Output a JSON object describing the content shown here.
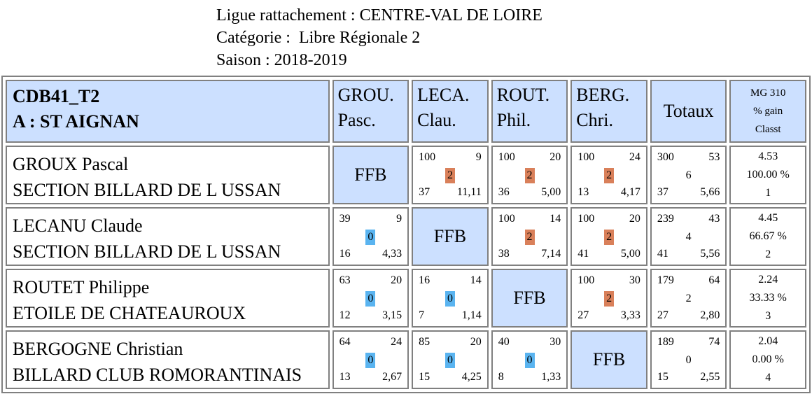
{
  "header": {
    "ligue": "Ligue rattachement : CENTRE-VAL DE LOIRE",
    "categorie": "Catégorie :  Libre Régionale 2",
    "saison": "Saison : 2018-2019"
  },
  "table_head": {
    "team_code": "CDB41_T2",
    "team_name": "A : ST AIGNAN",
    "cols": [
      {
        "l1": "GROU.",
        "l2": "Pasc."
      },
      {
        "l1": "LECA.",
        "l2": "Clau."
      },
      {
        "l1": "ROUT.",
        "l2": "Phil."
      },
      {
        "l1": "BERG.",
        "l2": "Chri."
      }
    ],
    "totaux": "Totaux",
    "mg": {
      "l1": "MG 310",
      "l2": "% gain",
      "l3": "Classt"
    }
  },
  "ffb_label": "FFB",
  "rows": [
    {
      "name": "GROUX Pascal",
      "club": "SECTION BILLARD DE L USSAN",
      "cells": [
        null,
        {
          "tl": "100",
          "tr": "9",
          "mid": "2",
          "bl": "37",
          "br": "11,11",
          "result": "win"
        },
        {
          "tl": "100",
          "tr": "20",
          "mid": "2",
          "bl": "36",
          "br": "5,00",
          "result": "win"
        },
        {
          "tl": "100",
          "tr": "24",
          "mid": "2",
          "bl": "13",
          "br": "4,17",
          "result": "win"
        }
      ],
      "totals": {
        "tl": "300",
        "tr": "53",
        "mid": "6",
        "bl": "37",
        "br": "5,66"
      },
      "mg": {
        "avg": "4.53",
        "pct": "100.00 %",
        "rank": "1"
      }
    },
    {
      "name": "LECANU Claude",
      "club": "SECTION BILLARD DE L USSAN",
      "cells": [
        {
          "tl": "39",
          "tr": "9",
          "mid": "0",
          "bl": "16",
          "br": "4,33",
          "result": "loss"
        },
        null,
        {
          "tl": "100",
          "tr": "14",
          "mid": "2",
          "bl": "38",
          "br": "7,14",
          "result": "win"
        },
        {
          "tl": "100",
          "tr": "20",
          "mid": "2",
          "bl": "41",
          "br": "5,00",
          "result": "win"
        }
      ],
      "totals": {
        "tl": "239",
        "tr": "43",
        "mid": "4",
        "bl": "41",
        "br": "5,56"
      },
      "mg": {
        "avg": "4.45",
        "pct": "66.67 %",
        "rank": "2"
      }
    },
    {
      "name": "ROUTET Philippe",
      "club": "ETOILE DE CHATEAUROUX",
      "cells": [
        {
          "tl": "63",
          "tr": "20",
          "mid": "0",
          "bl": "12",
          "br": "3,15",
          "result": "loss"
        },
        {
          "tl": "16",
          "tr": "14",
          "mid": "0",
          "bl": "7",
          "br": "1,14",
          "result": "loss"
        },
        null,
        {
          "tl": "100",
          "tr": "30",
          "mid": "2",
          "bl": "27",
          "br": "3,33",
          "result": "win"
        }
      ],
      "totals": {
        "tl": "179",
        "tr": "64",
        "mid": "2",
        "bl": "27",
        "br": "2,80"
      },
      "mg": {
        "avg": "2.24",
        "pct": "33.33 %",
        "rank": "3"
      }
    },
    {
      "name": "BERGOGNE Christian",
      "club": "BILLARD CLUB ROMORANTINAIS",
      "cells": [
        {
          "tl": "64",
          "tr": "24",
          "mid": "0",
          "bl": "13",
          "br": "2,67",
          "result": "loss"
        },
        {
          "tl": "85",
          "tr": "20",
          "mid": "0",
          "bl": "15",
          "br": "4,25",
          "result": "loss"
        },
        {
          "tl": "40",
          "tr": "30",
          "mid": "0",
          "bl": "8",
          "br": "1,33",
          "result": "loss"
        },
        null
      ],
      "totals": {
        "tl": "189",
        "tr": "74",
        "mid": "0",
        "bl": "15",
        "br": "2,55"
      },
      "mg": {
        "avg": "2.04",
        "pct": "0.00 %",
        "rank": "4"
      }
    }
  ],
  "colors": {
    "header_bg": "#cce0ff",
    "win": "#d9805a",
    "loss": "#5ab4f0",
    "border": "#808080"
  }
}
